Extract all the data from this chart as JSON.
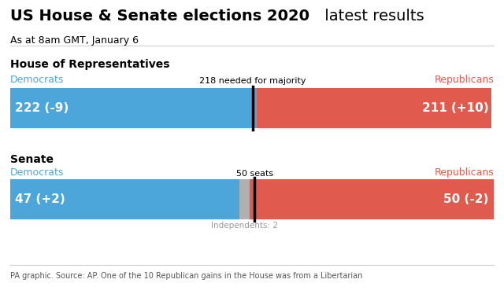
{
  "title_bold": "US House & Senate elections 2020",
  "title_regular": " latest results",
  "subtitle": "As at 8am GMT, January 6",
  "footer": "PA graphic. Source: AP. One of the 10 Republican gains in the House was from a Libertarian",
  "house_section": "House of Representatives",
  "senate_section": "Senate",
  "house_dem_seats": 222,
  "house_dem_change": "-9",
  "house_rep_seats": 211,
  "house_rep_change": "+10",
  "house_total": 435,
  "house_majority": 218,
  "house_majority_label": "218 needed for majority",
  "senate_dem_seats": 47,
  "senate_dem_change": "+2",
  "senate_rep_seats": 50,
  "senate_rep_change": "-2",
  "senate_ind_seats": 2,
  "senate_total": 99,
  "senate_majority": 50,
  "senate_majority_label": "50 seats",
  "senate_ind_label": "Independents: 2",
  "dem_color": "#4da6d9",
  "rep_color": "#e05a4e",
  "ind_color": "#b0b0b0",
  "bg_color": "#ffffff",
  "dem_label_color": "#4da6d9",
  "rep_label_color": "#e05a4e",
  "bar_text_color": "#ffffff",
  "majority_line_color": "#000000"
}
